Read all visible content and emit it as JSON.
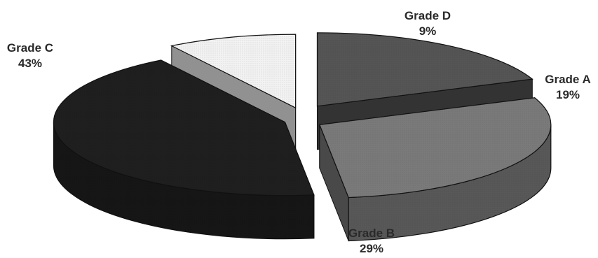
{
  "chart_data": {
    "type": "pie",
    "style": "3d-exploded",
    "title": "",
    "slices": [
      {
        "label": "Grade A",
        "value": 19,
        "display": "19%",
        "color": "#555555"
      },
      {
        "label": "Grade B",
        "value": 29,
        "display": "29%",
        "color": "#7a7a7a"
      },
      {
        "label": "Grade C",
        "value": 43,
        "display": "43%",
        "color": "#1f1f1f"
      },
      {
        "label": "Grade D",
        "value": 9,
        "display": "9%",
        "color": "#f2f2f2"
      }
    ]
  }
}
